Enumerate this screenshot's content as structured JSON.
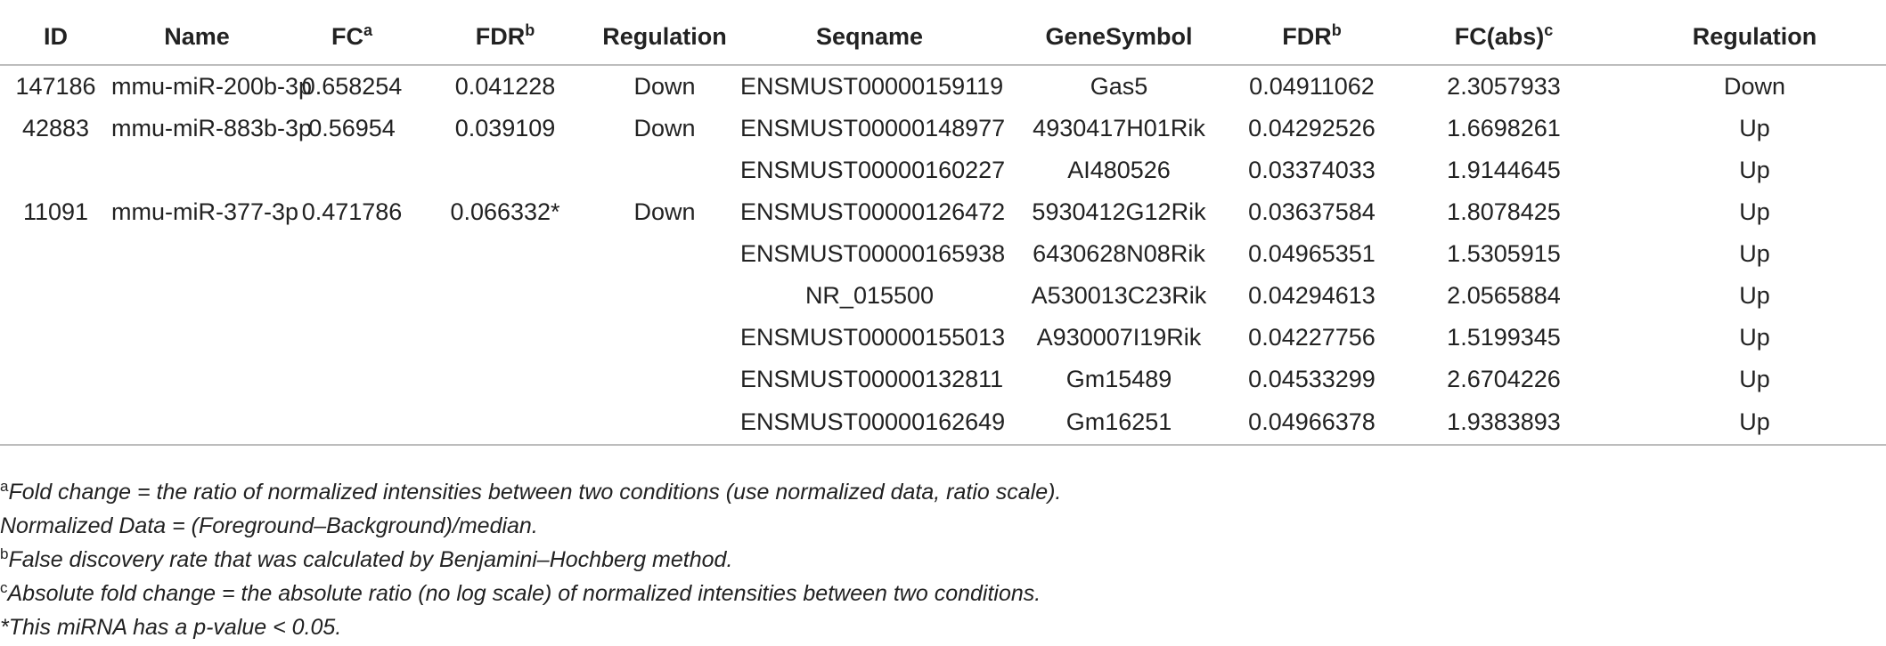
{
  "headers": {
    "id": "ID",
    "name": "Name",
    "fc": "FC",
    "fc_sup": "a",
    "fdr1": "FDR",
    "fdr1_sup": "b",
    "regulation1": "Regulation",
    "seqname": "Seqname",
    "genesymbol": "GeneSymbol",
    "fdr2": "FDR",
    "fdr2_sup": "b",
    "fcabs": "FC(abs)",
    "fcabs_sup": "c",
    "regulation2": "Regulation"
  },
  "rows": [
    {
      "id": "147186",
      "name": "mmu-miR-200b-3p",
      "fc": "0.658254",
      "fdr": "0.041228",
      "regulation": "Down",
      "seqname": "ENSMUST00000159119",
      "genesymbol": "Gas5",
      "fdr2": "0.04911062",
      "fcabs": "2.3057933",
      "regulation2": "Down"
    },
    {
      "id": "42883",
      "name": "mmu-miR-883b-3p",
      "fc": "0.56954",
      "fdr": "0.039109",
      "regulation": "Down",
      "seqname": "ENSMUST00000148977",
      "genesymbol": "4930417H01Rik",
      "fdr2": "0.04292526",
      "fcabs": "1.6698261",
      "regulation2": "Up"
    },
    {
      "id": "",
      "name": "",
      "fc": "",
      "fdr": "",
      "regulation": "",
      "seqname": "ENSMUST00000160227",
      "genesymbol": "AI480526",
      "fdr2": "0.03374033",
      "fcabs": "1.9144645",
      "regulation2": "Up"
    },
    {
      "id": "11091",
      "name": "mmu-miR-377-3p",
      "fc": "0.471786",
      "fdr": "0.066332*",
      "regulation": "Down",
      "seqname": "ENSMUST00000126472",
      "genesymbol": "5930412G12Rik",
      "fdr2": "0.03637584",
      "fcabs": "1.8078425",
      "regulation2": "Up"
    },
    {
      "id": "",
      "name": "",
      "fc": "",
      "fdr": "",
      "regulation": "",
      "seqname": "ENSMUST00000165938",
      "genesymbol": "6430628N08Rik",
      "fdr2": "0.04965351",
      "fcabs": "1.5305915",
      "regulation2": "Up"
    },
    {
      "id": "",
      "name": "",
      "fc": "",
      "fdr": "",
      "regulation": "",
      "seqname": "NR_015500",
      "genesymbol": "A530013C23Rik",
      "fdr2": "0.04294613",
      "fcabs": "2.0565884",
      "regulation2": "Up"
    },
    {
      "id": "",
      "name": "",
      "fc": "",
      "fdr": "",
      "regulation": "",
      "seqname": "ENSMUST00000155013",
      "genesymbol": "A930007I19Rik",
      "fdr2": "0.04227756",
      "fcabs": "1.5199345",
      "regulation2": "Up"
    },
    {
      "id": "",
      "name": "",
      "fc": "",
      "fdr": "",
      "regulation": "",
      "seqname": "ENSMUST00000132811",
      "genesymbol": "Gm15489",
      "fdr2": "0.04533299",
      "fcabs": "2.6704226",
      "regulation2": "Up"
    },
    {
      "id": "",
      "name": "",
      "fc": "",
      "fdr": "",
      "regulation": "",
      "seqname": "ENSMUST00000162649",
      "genesymbol": "Gm16251",
      "fdr2": "0.04966378",
      "fcabs": "1.9383893",
      "regulation2": "Up"
    }
  ],
  "footnotes": [
    {
      "mark": "a",
      "text": "Fold change = the ratio of normalized intensities between two conditions (use normalized data, ratio scale)."
    },
    {
      "mark": "",
      "text": "Normalized Data = (Foreground–Background)/median."
    },
    {
      "mark": "b",
      "text": "False discovery rate that was calculated by Benjamini–Hochberg method."
    },
    {
      "mark": "c",
      "text": "Absolute fold change = the absolute ratio (no log scale) of normalized intensities between two conditions."
    },
    {
      "mark": "",
      "text": "*This miRNA has a p-value < 0.05."
    }
  ]
}
